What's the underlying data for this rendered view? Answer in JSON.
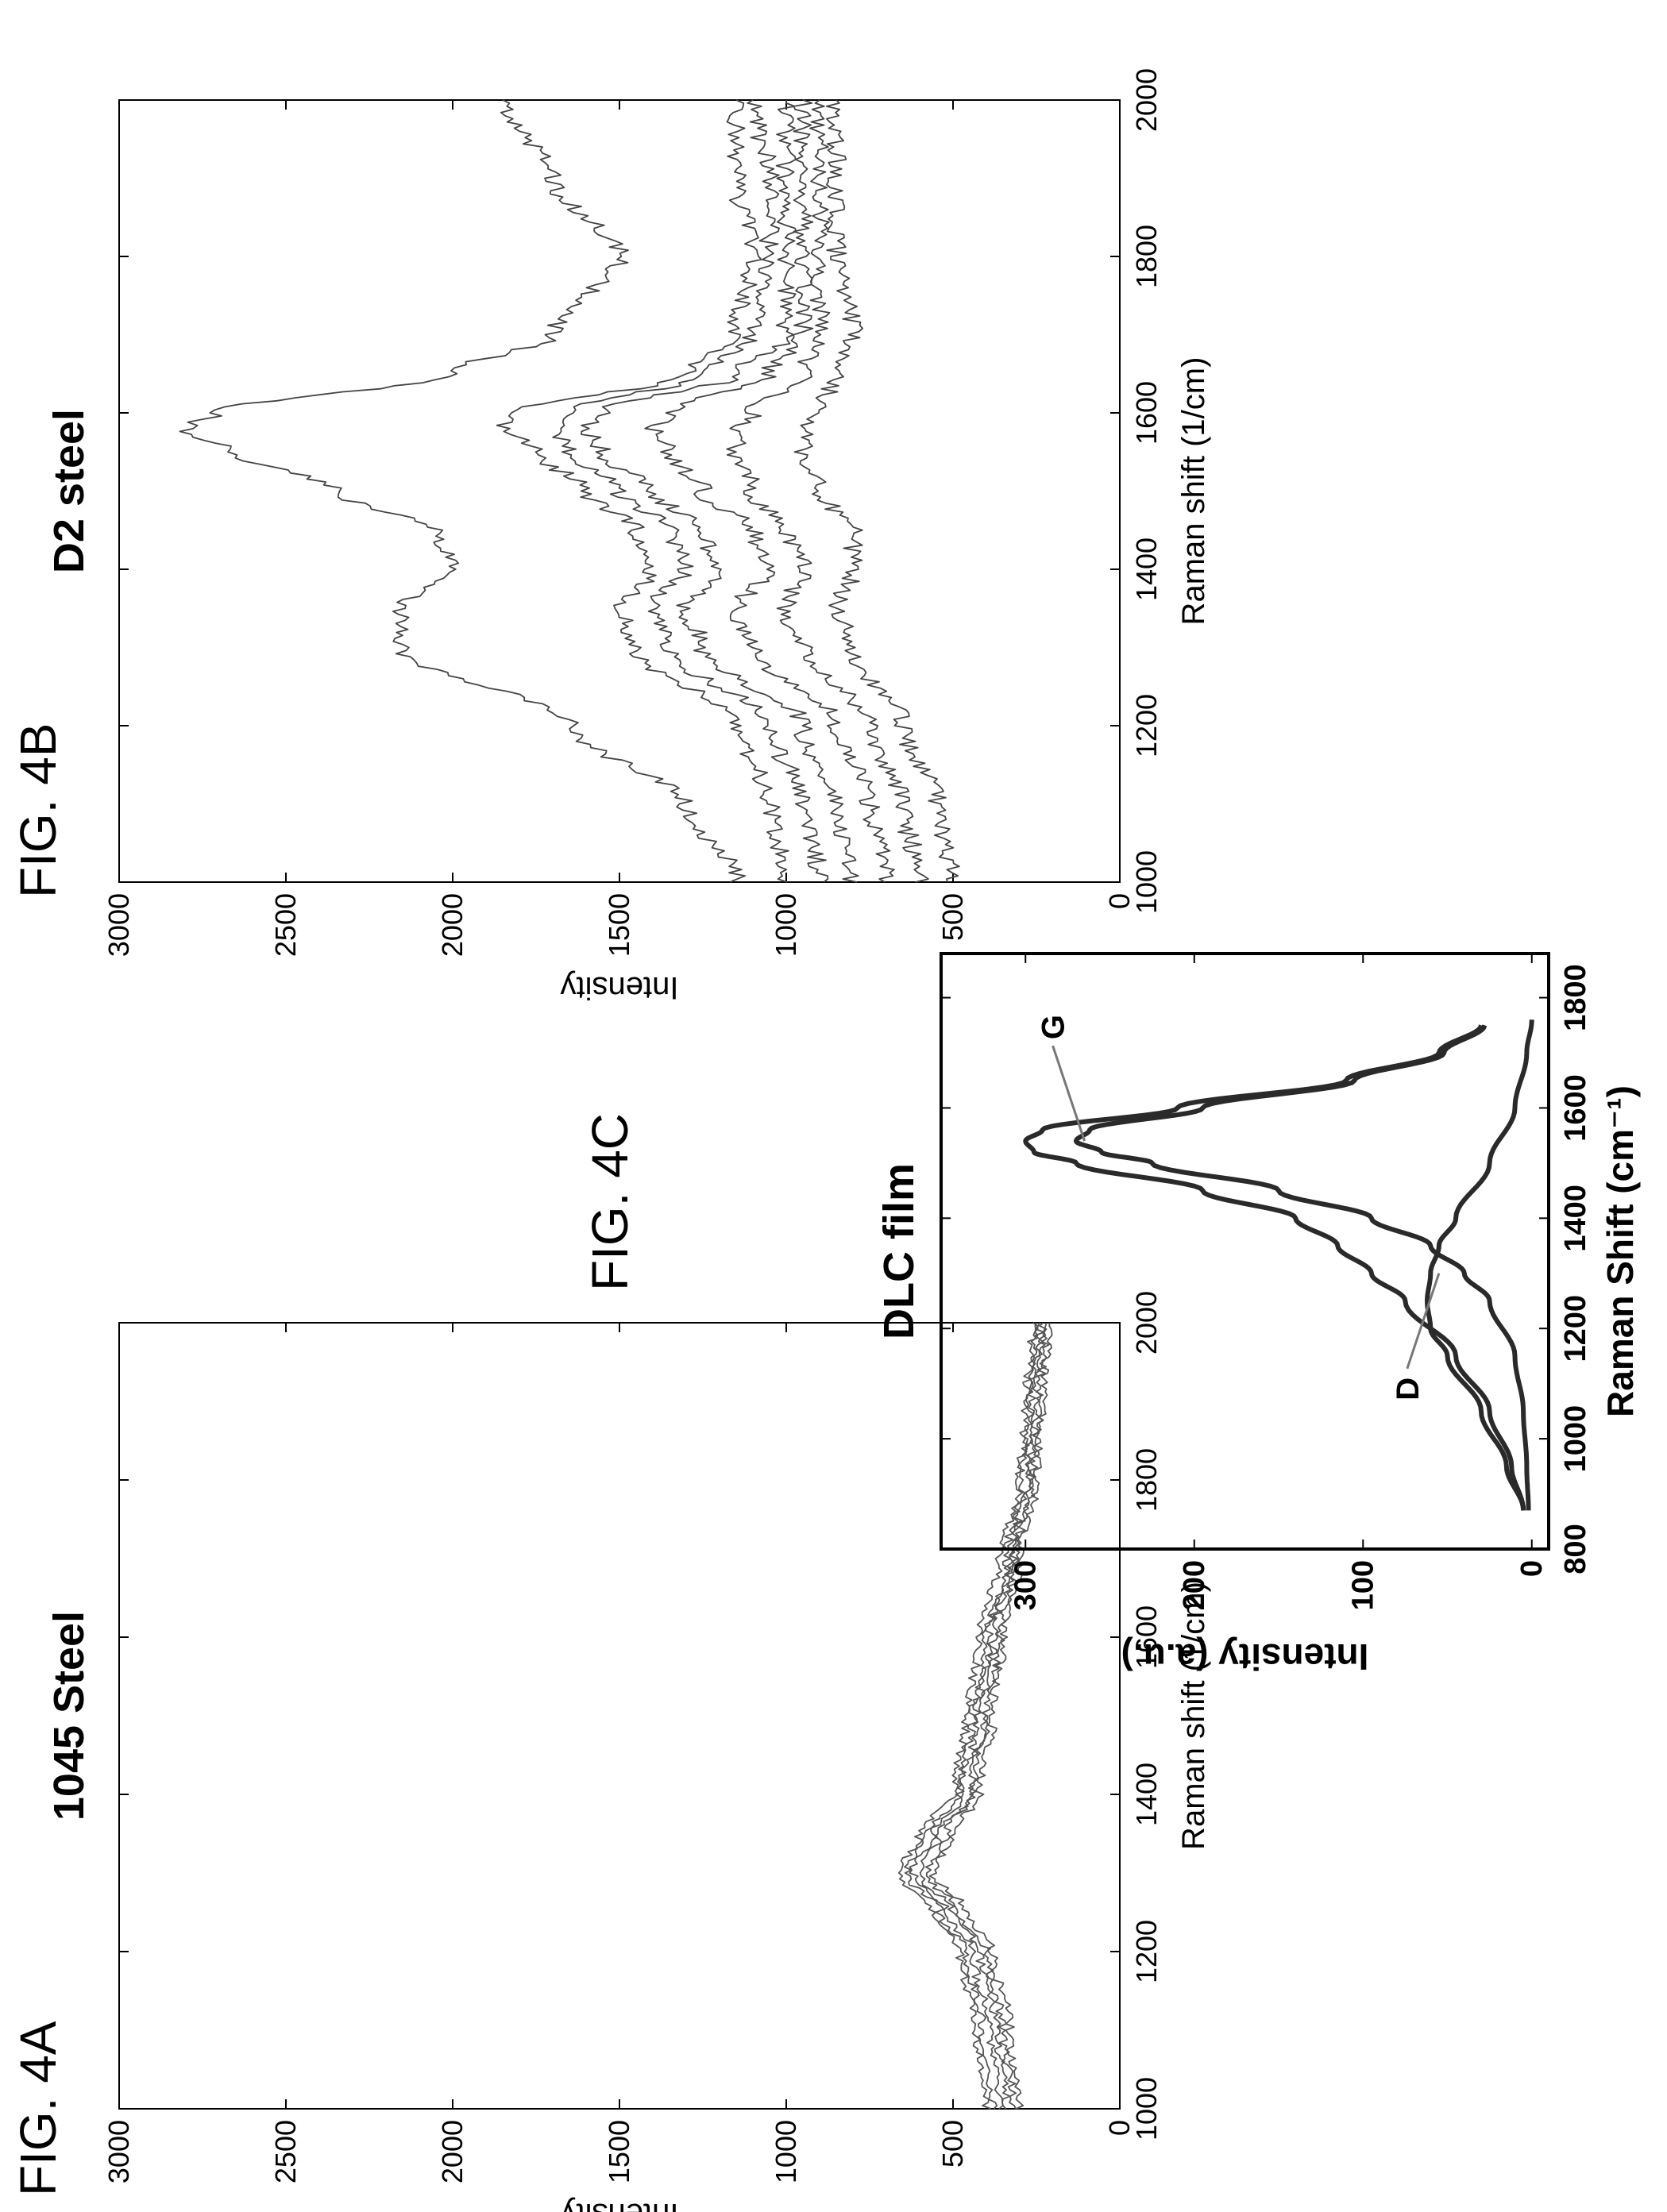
{
  "chart_data": [
    {
      "id": "fig4a",
      "figure_label": "FIG. 4A",
      "type": "line",
      "title": "1045 Steel",
      "xlabel": "Raman shift (1/cm)",
      "ylabel": "Intensity",
      "xlim": [
        1000,
        2000
      ],
      "ylim": [
        0,
        3000
      ],
      "xticks": [
        1000,
        1200,
        1400,
        1600,
        1800,
        2000
      ],
      "yticks": [
        0,
        500,
        1000,
        1500,
        2000,
        2500,
        3000
      ],
      "grid": false,
      "series": [
        {
          "x": [
            1000,
            1100,
            1200,
            1250,
            1300,
            1350,
            1400,
            1500,
            1600,
            1700,
            1800,
            1900,
            2000
          ],
          "values": [
            400,
            430,
            480,
            560,
            660,
            600,
            500,
            460,
            420,
            360,
            300,
            280,
            260
          ]
        },
        {
          "x": [
            1000,
            1100,
            1200,
            1250,
            1300,
            1350,
            1400,
            1500,
            1600,
            1700,
            1800,
            1900,
            2000
          ],
          "values": [
            380,
            410,
            460,
            540,
            640,
            580,
            480,
            440,
            400,
            340,
            290,
            270,
            250
          ]
        },
        {
          "x": [
            1000,
            1100,
            1200,
            1250,
            1300,
            1350,
            1400,
            1500,
            1600,
            1700,
            1800,
            1900,
            2000
          ],
          "values": [
            360,
            390,
            440,
            520,
            620,
            560,
            470,
            430,
            390,
            330,
            280,
            260,
            240
          ]
        },
        {
          "x": [
            1000,
            1100,
            1200,
            1250,
            1300,
            1350,
            1400,
            1500,
            1600,
            1700,
            1800,
            1900,
            2000
          ],
          "values": [
            340,
            370,
            420,
            500,
            600,
            540,
            450,
            410,
            380,
            320,
            270,
            250,
            230
          ]
        },
        {
          "x": [
            1000,
            1100,
            1200,
            1250,
            1300,
            1350,
            1400,
            1500,
            1600,
            1700,
            1800,
            1900,
            2000
          ],
          "values": [
            320,
            350,
            400,
            480,
            580,
            520,
            440,
            400,
            360,
            310,
            260,
            240,
            220
          ]
        },
        {
          "x": [
            1000,
            1100,
            1200,
            1250,
            1300,
            1350,
            1400,
            1500,
            1600,
            1700,
            1800,
            1900,
            2000
          ],
          "values": [
            300,
            330,
            380,
            460,
            560,
            500,
            420,
            380,
            350,
            300,
            250,
            230,
            210
          ]
        }
      ]
    },
    {
      "id": "fig4b",
      "figure_label": "FIG. 4B",
      "type": "line",
      "title": "D2 steel",
      "xlabel": "Raman shift (1/cm)",
      "ylabel": "Intensity",
      "xlim": [
        1000,
        2000
      ],
      "ylim": [
        0,
        3000
      ],
      "xticks": [
        1000,
        1200,
        1400,
        1600,
        1800,
        2000
      ],
      "yticks": [
        0,
        500,
        1000,
        1500,
        2000,
        2500,
        3000
      ],
      "grid": false,
      "series": [
        {
          "x": [
            1000,
            1100,
            1200,
            1300,
            1350,
            1400,
            1450,
            1500,
            1550,
            1580,
            1600,
            1650,
            1700,
            1800,
            1900,
            2000
          ],
          "values": [
            1150,
            1300,
            1650,
            2150,
            2150,
            2000,
            2050,
            2350,
            2650,
            2800,
            2700,
            2000,
            1700,
            1500,
            1700,
            1850
          ]
        },
        {
          "x": [
            1000,
            1100,
            1200,
            1300,
            1350,
            1400,
            1450,
            1500,
            1550,
            1580,
            1600,
            1650,
            1700,
            1800,
            1900,
            2000
          ],
          "values": [
            1000,
            1050,
            1150,
            1450,
            1500,
            1400,
            1450,
            1600,
            1750,
            1850,
            1800,
            1300,
            1150,
            1100,
            1150,
            1150
          ]
        },
        {
          "x": [
            1000,
            1100,
            1200,
            1300,
            1350,
            1400,
            1450,
            1500,
            1550,
            1580,
            1600,
            1650,
            1700,
            1800,
            1900,
            2000
          ],
          "values": [
            900,
            950,
            1050,
            1350,
            1400,
            1300,
            1350,
            1500,
            1650,
            1700,
            1650,
            1250,
            1100,
            1050,
            1050,
            1100
          ]
        },
        {
          "x": [
            1000,
            1100,
            1200,
            1300,
            1350,
            1400,
            1450,
            1500,
            1550,
            1580,
            1600,
            1650,
            1700,
            1800,
            1900,
            2000
          ],
          "values": [
            800,
            850,
            950,
            1250,
            1300,
            1200,
            1250,
            1400,
            1550,
            1600,
            1550,
            1150,
            1000,
            1000,
            1000,
            1000
          ]
        },
        {
          "x": [
            1000,
            1100,
            1200,
            1300,
            1350,
            1400,
            1450,
            1500,
            1550,
            1580,
            1600,
            1650,
            1700,
            1800,
            1900,
            2000
          ],
          "values": [
            700,
            750,
            850,
            1100,
            1150,
            1050,
            1100,
            1250,
            1350,
            1400,
            1350,
            1050,
            950,
            950,
            950,
            950
          ]
        },
        {
          "x": [
            1000,
            1100,
            1200,
            1300,
            1350,
            1400,
            1450,
            1500,
            1550,
            1580,
            1600,
            1650,
            1700,
            1800,
            1900,
            2000
          ],
          "values": [
            600,
            650,
            750,
            950,
            1000,
            950,
            1000,
            1100,
            1150,
            1150,
            1100,
            950,
            900,
            900,
            900,
            900
          ]
        },
        {
          "x": [
            1000,
            1100,
            1200,
            1300,
            1350,
            1400,
            1450,
            1500,
            1550,
            1580,
            1600,
            1650,
            1700,
            1800,
            1900,
            2000
          ],
          "values": [
            500,
            550,
            650,
            800,
            850,
            800,
            800,
            900,
            950,
            950,
            900,
            850,
            800,
            850,
            850,
            850
          ]
        }
      ]
    },
    {
      "id": "fig4c",
      "figure_label": "FIG. 4C",
      "type": "line",
      "title": "DLC film",
      "xlabel": "Raman Shift (cm⁻¹)",
      "ylabel": "Intensity (a.u.)",
      "xlim": [
        800,
        1880
      ],
      "ylim": [
        -10,
        350
      ],
      "xticks": [
        800,
        1000,
        1200,
        1400,
        1600,
        1800
      ],
      "yticks": [
        0,
        100,
        200,
        300
      ],
      "grid": false,
      "annotations": [
        {
          "text": "D",
          "x": 1300,
          "y": 55
        },
        {
          "text": "G",
          "x": 1540,
          "y": 265
        }
      ],
      "series": [
        {
          "x": [
            870,
            950,
            1050,
            1150,
            1250,
            1300,
            1350,
            1400,
            1450,
            1500,
            1520,
            1540,
            1560,
            1600,
            1650,
            1700,
            1750
          ],
          "values": [
            5,
            12,
            25,
            45,
            75,
            95,
            115,
            140,
            195,
            270,
            295,
            300,
            290,
            210,
            110,
            55,
            30
          ]
        },
        {
          "x": [
            870,
            950,
            1050,
            1150,
            1250,
            1300,
            1350,
            1400,
            1450,
            1500,
            1520,
            1540,
            1560,
            1600,
            1650,
            1700,
            1750
          ],
          "values": [
            2,
            3,
            5,
            10,
            25,
            40,
            60,
            95,
            150,
            225,
            255,
            270,
            262,
            195,
            105,
            52,
            28
          ]
        },
        {
          "x": [
            870,
            950,
            1050,
            1150,
            1200,
            1250,
            1300,
            1350,
            1400,
            1500,
            1600,
            1700,
            1760
          ],
          "values": [
            5,
            15,
            30,
            50,
            60,
            62,
            60,
            55,
            45,
            25,
            10,
            3,
            0
          ]
        }
      ]
    }
  ]
}
